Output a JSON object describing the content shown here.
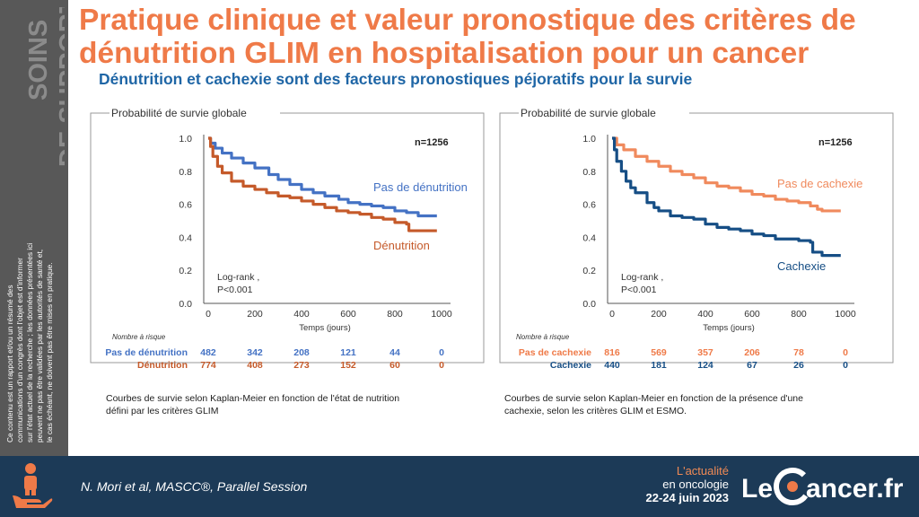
{
  "sidebar": {
    "title_line1": "SOINS",
    "title_line2": "DE SUPPORT",
    "disclaimer": [
      "Ce contenu est un rapport et/ou un résumé des",
      "communications d'un congrès dont l'objet est d'informer",
      "sur l'état actuel de la recherche ; les données présentées ici",
      "peuvent ne pas être validées par les autorités de santé et,",
      "le cas échéant, ne doivent pas être mises en pratique."
    ]
  },
  "header": {
    "title_line1": "Pratique clinique et valeur pronostique des critères de",
    "title_line2": "dénutrition GLIM en hospitalisation pour un cancer",
    "subtitle": "Dénutrition et cachexie sont des facteurs pronostiques péjoratifs pour la survie"
  },
  "colors": {
    "orange": "#ef7a48",
    "blue_title": "#1f66a6",
    "sidebar": "#585858",
    "footer": "#1c3a57"
  },
  "chart_data": [
    {
      "type": "line",
      "title": "Probabilité de survie globale",
      "xlabel": "Temps (jours)",
      "ylabel": "",
      "xlim": [
        0,
        1000
      ],
      "ylim": [
        0,
        1
      ],
      "xticks": [
        "0",
        "200",
        "400",
        "600",
        "800",
        "1000"
      ],
      "yticks": [
        "0.0",
        "0.2",
        "0.4",
        "0.6",
        "0.8",
        "1.0"
      ],
      "n_label": "n=1256",
      "logrank": [
        "Log-rank ,",
        "P<0.001"
      ],
      "series": [
        {
          "name": "Pas de dénutrition",
          "color": "#4472c4",
          "x": [
            0,
            10,
            30,
            60,
            100,
            150,
            200,
            260,
            300,
            350,
            400,
            450,
            500,
            560,
            600,
            650,
            700,
            750,
            800,
            850,
            880,
            900,
            950,
            980
          ],
          "y": [
            1.0,
            0.97,
            0.94,
            0.91,
            0.88,
            0.85,
            0.82,
            0.78,
            0.75,
            0.72,
            0.69,
            0.67,
            0.65,
            0.63,
            0.61,
            0.6,
            0.59,
            0.58,
            0.56,
            0.55,
            0.55,
            0.53,
            0.53,
            0.53
          ]
        },
        {
          "name": "Dénutrition",
          "color": "#c55a2a",
          "x": [
            0,
            10,
            20,
            40,
            60,
            100,
            150,
            200,
            250,
            300,
            350,
            400,
            450,
            500,
            550,
            600,
            650,
            700,
            750,
            800,
            850,
            860,
            900,
            950,
            980
          ],
          "y": [
            1.0,
            0.95,
            0.89,
            0.83,
            0.79,
            0.74,
            0.71,
            0.69,
            0.67,
            0.65,
            0.64,
            0.62,
            0.6,
            0.58,
            0.56,
            0.55,
            0.54,
            0.52,
            0.51,
            0.49,
            0.48,
            0.44,
            0.44,
            0.44,
            0.44
          ]
        }
      ],
      "risk_table": {
        "header": "Nombre à risque",
        "rows": [
          {
            "label": "Pas de dénutrition",
            "color": "#4472c4",
            "values": [
              "482",
              "342",
              "208",
              "121",
              "44",
              "0"
            ]
          },
          {
            "label": "Dénutrition",
            "color": "#c55a2a",
            "values": [
              "774",
              "408",
              "273",
              "152",
              "60",
              "0"
            ]
          }
        ]
      },
      "caption": [
        "Courbes de survie selon Kaplan-Meier  en fonction de l'état de nutrition",
        "défini par les critères GLIM"
      ]
    },
    {
      "type": "line",
      "title": "Probabilité de survie globale",
      "xlabel": "Temps (jours)",
      "ylabel": "",
      "xlim": [
        0,
        1000
      ],
      "ylim": [
        0,
        1
      ],
      "xticks": [
        "0",
        "200",
        "400",
        "600",
        "800",
        "1000"
      ],
      "yticks": [
        "0.0",
        "0.2",
        "0.4",
        "0.6",
        "0.8",
        "1.0"
      ],
      "n_label": "n=1256",
      "logrank": [
        "Log-rank ,",
        "P<0.001"
      ],
      "series": [
        {
          "name": "Pas de cachexie",
          "color": "#f08a5d",
          "x": [
            0,
            20,
            50,
            100,
            150,
            200,
            250,
            300,
            350,
            400,
            450,
            500,
            550,
            600,
            650,
            700,
            750,
            800,
            850,
            880,
            900,
            950,
            980
          ],
          "y": [
            1.0,
            0.96,
            0.93,
            0.89,
            0.86,
            0.83,
            0.8,
            0.78,
            0.76,
            0.73,
            0.71,
            0.7,
            0.68,
            0.66,
            0.65,
            0.63,
            0.62,
            0.61,
            0.59,
            0.57,
            0.56,
            0.56,
            0.56
          ]
        },
        {
          "name": "Cachexie",
          "color": "#164e85",
          "x": [
            0,
            10,
            20,
            40,
            60,
            80,
            100,
            150,
            180,
            200,
            250,
            300,
            350,
            400,
            450,
            500,
            550,
            600,
            650,
            700,
            750,
            800,
            850,
            860,
            900,
            950,
            980
          ],
          "y": [
            1.0,
            0.93,
            0.86,
            0.8,
            0.74,
            0.7,
            0.67,
            0.61,
            0.58,
            0.56,
            0.53,
            0.52,
            0.51,
            0.48,
            0.46,
            0.45,
            0.44,
            0.42,
            0.41,
            0.39,
            0.39,
            0.38,
            0.37,
            0.31,
            0.29,
            0.29,
            0.29
          ]
        }
      ],
      "risk_table": {
        "header": "Nombre à risque",
        "rows": [
          {
            "label": "Pas de cachexie",
            "color": "#ef7a48",
            "values": [
              "816",
              "569",
              "357",
              "206",
              "78",
              "0"
            ]
          },
          {
            "label": "Cachexie",
            "color": "#164e85",
            "values": [
              "440",
              "181",
              "124",
              "67",
              "26",
              "0"
            ]
          }
        ]
      },
      "caption": [
        "Courbes de survie selon Kaplan-Meier  en fonction de la présence  d'une",
        "cachexie,  selon les critères GLIM   et ESMO."
      ]
    }
  ],
  "footer": {
    "source": "N. Mori et al, MASCC®, Parallel Session",
    "event_line1": "L'actualité",
    "event_line2": "en oncologie",
    "event_line3": "22-24 juin 2023",
    "logo_left": "Le",
    "logo_right": "ancer.fr"
  }
}
